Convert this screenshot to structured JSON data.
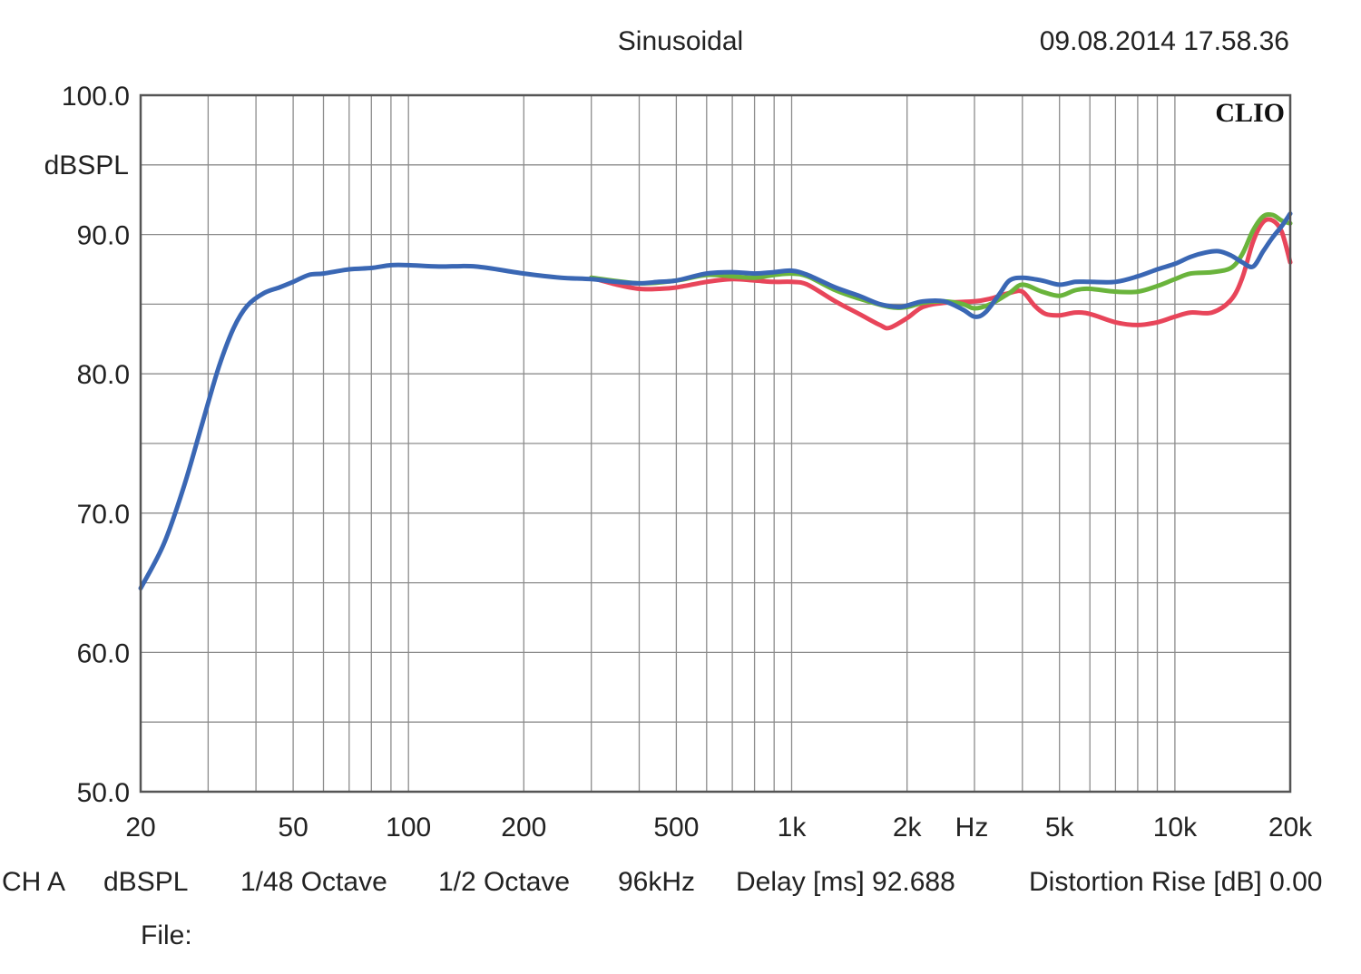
{
  "header": {
    "title": "Sinusoidal",
    "datetime": "09.08.2014 17.58.36",
    "brand": "CLIO"
  },
  "footer": {
    "channel": "CH A",
    "units": "dBSPL",
    "resolution": "1/48 Octave",
    "smoothing": "1/2 Octave",
    "sample_rate": "96kHz",
    "delay": "Delay [ms] 92.688",
    "distortion": "Distortion Rise [dB] 0.00",
    "file_label": "File:"
  },
  "chart_data": {
    "type": "line",
    "ylabel": "dBSPL",
    "xlabel": "Hz",
    "x_scale": "log",
    "xlim": [
      20,
      20000
    ],
    "ylim": [
      50,
      100
    ],
    "y_ticks": [
      {
        "value": 100,
        "label": "100.0"
      },
      {
        "value": 90,
        "label": "90.0"
      },
      {
        "value": 80,
        "label": "80.0"
      },
      {
        "value": 70,
        "label": "70.0"
      },
      {
        "value": 60,
        "label": "60.0"
      },
      {
        "value": 50,
        "label": "50.0"
      }
    ],
    "x_ticks": [
      {
        "value": 20,
        "label": "20"
      },
      {
        "value": 50,
        "label": "50"
      },
      {
        "value": 100,
        "label": "100"
      },
      {
        "value": 200,
        "label": "200"
      },
      {
        "value": 500,
        "label": "500"
      },
      {
        "value": 1000,
        "label": "1k"
      },
      {
        "value": 2000,
        "label": "2k"
      },
      {
        "value": 5000,
        "label": "5k"
      },
      {
        "value": 10000,
        "label": "10k"
      },
      {
        "value": 20000,
        "label": "20k"
      }
    ],
    "grid": true,
    "series": [
      {
        "color": "#e8455a",
        "points": [
          [
            300,
            86.9
          ],
          [
            350,
            86.4
          ],
          [
            400,
            86.1
          ],
          [
            450,
            86.1
          ],
          [
            500,
            86.2
          ],
          [
            600,
            86.6
          ],
          [
            700,
            86.8
          ],
          [
            800,
            86.7
          ],
          [
            900,
            86.6
          ],
          [
            1000,
            86.6
          ],
          [
            1100,
            86.4
          ],
          [
            1300,
            85.2
          ],
          [
            1500,
            84.3
          ],
          [
            1700,
            83.5
          ],
          [
            1800,
            83.3
          ],
          [
            2000,
            84.0
          ],
          [
            2200,
            84.8
          ],
          [
            2500,
            85.1
          ],
          [
            3000,
            85.2
          ],
          [
            3300,
            85.4
          ],
          [
            3700,
            85.8
          ],
          [
            4000,
            85.9
          ],
          [
            4300,
            84.9
          ],
          [
            4600,
            84.3
          ],
          [
            5000,
            84.2
          ],
          [
            5500,
            84.4
          ],
          [
            6000,
            84.3
          ],
          [
            7000,
            83.7
          ],
          [
            8000,
            83.5
          ],
          [
            9000,
            83.7
          ],
          [
            10000,
            84.1
          ],
          [
            11000,
            84.4
          ],
          [
            12500,
            84.4
          ],
          [
            14000,
            85.3
          ],
          [
            15000,
            86.9
          ],
          [
            16000,
            89.5
          ],
          [
            17000,
            90.9
          ],
          [
            18000,
            91.0
          ],
          [
            19000,
            90.2
          ],
          [
            20000,
            88.0
          ]
        ]
      },
      {
        "color": "#6ab43c",
        "points": [
          [
            300,
            86.9
          ],
          [
            400,
            86.5
          ],
          [
            500,
            86.7
          ],
          [
            600,
            87.1
          ],
          [
            700,
            87.0
          ],
          [
            800,
            86.9
          ],
          [
            900,
            87.1
          ],
          [
            1000,
            87.2
          ],
          [
            1100,
            87.0
          ],
          [
            1300,
            86.0
          ],
          [
            1500,
            85.4
          ],
          [
            1800,
            84.8
          ],
          [
            2000,
            84.8
          ],
          [
            2200,
            85.1
          ],
          [
            2500,
            85.2
          ],
          [
            2800,
            85.0
          ],
          [
            3000,
            84.7
          ],
          [
            3300,
            85.0
          ],
          [
            3700,
            85.8
          ],
          [
            4000,
            86.4
          ],
          [
            4500,
            85.9
          ],
          [
            5000,
            85.6
          ],
          [
            5500,
            86.0
          ],
          [
            6000,
            86.1
          ],
          [
            7000,
            85.9
          ],
          [
            8000,
            85.9
          ],
          [
            9000,
            86.3
          ],
          [
            10000,
            86.8
          ],
          [
            11000,
            87.2
          ],
          [
            12500,
            87.3
          ],
          [
            14000,
            87.6
          ],
          [
            15000,
            88.6
          ],
          [
            16000,
            90.3
          ],
          [
            17000,
            91.3
          ],
          [
            18000,
            91.4
          ],
          [
            19000,
            91.0
          ],
          [
            20000,
            90.8
          ]
        ]
      },
      {
        "color": "#3a67b4",
        "points": [
          [
            20,
            64.6
          ],
          [
            23,
            67.8
          ],
          [
            26,
            72.0
          ],
          [
            29,
            76.5
          ],
          [
            32,
            80.5
          ],
          [
            35,
            83.3
          ],
          [
            38,
            84.9
          ],
          [
            42,
            85.8
          ],
          [
            46,
            86.2
          ],
          [
            50,
            86.6
          ],
          [
            55,
            87.1
          ],
          [
            60,
            87.2
          ],
          [
            70,
            87.5
          ],
          [
            80,
            87.6
          ],
          [
            90,
            87.8
          ],
          [
            100,
            87.8
          ],
          [
            120,
            87.7
          ],
          [
            150,
            87.7
          ],
          [
            200,
            87.2
          ],
          [
            250,
            86.9
          ],
          [
            300,
            86.8
          ],
          [
            350,
            86.6
          ],
          [
            400,
            86.5
          ],
          [
            450,
            86.6
          ],
          [
            500,
            86.7
          ],
          [
            600,
            87.2
          ],
          [
            700,
            87.3
          ],
          [
            800,
            87.2
          ],
          [
            900,
            87.3
          ],
          [
            1000,
            87.4
          ],
          [
            1100,
            87.1
          ],
          [
            1300,
            86.2
          ],
          [
            1500,
            85.6
          ],
          [
            1700,
            85.0
          ],
          [
            1900,
            84.8
          ],
          [
            2000,
            84.9
          ],
          [
            2200,
            85.2
          ],
          [
            2500,
            85.2
          ],
          [
            2800,
            84.6
          ],
          [
            3000,
            84.1
          ],
          [
            3200,
            84.4
          ],
          [
            3500,
            85.8
          ],
          [
            3700,
            86.7
          ],
          [
            4000,
            86.9
          ],
          [
            4500,
            86.7
          ],
          [
            5000,
            86.4
          ],
          [
            5500,
            86.6
          ],
          [
            6000,
            86.6
          ],
          [
            7000,
            86.6
          ],
          [
            8000,
            87.0
          ],
          [
            9000,
            87.5
          ],
          [
            10000,
            87.9
          ],
          [
            11000,
            88.4
          ],
          [
            12000,
            88.7
          ],
          [
            13000,
            88.8
          ],
          [
            14000,
            88.5
          ],
          [
            15000,
            88.0
          ],
          [
            16000,
            87.7
          ],
          [
            17000,
            88.8
          ],
          [
            18000,
            89.8
          ],
          [
            19000,
            90.6
          ],
          [
            20000,
            91.5
          ]
        ]
      }
    ]
  }
}
